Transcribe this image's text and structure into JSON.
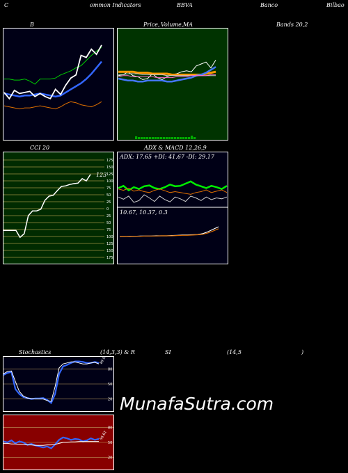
{
  "header": {
    "c1": "C",
    "c2": "ommon Indicators",
    "c3": "BBVA",
    "c4": "Banco",
    "c5": "Bilbao"
  },
  "panel_titles": {
    "bb": "B",
    "price_a": "Price,",
    "price_b": "Volume,",
    "price_c": "MA",
    "bands": "Bands 20,2",
    "cci": "CCI 20",
    "adx": "ADX  & MACD 12,26,9",
    "stoch_a": "Stochastics",
    "stoch_b": "(14,3,3) & R",
    "stoch_c": "SI",
    "stoch_d": "(14,5",
    "stoch_e": ")"
  },
  "watermark": "MunafaSutra.com",
  "colors": {
    "bb_bg": "#000016",
    "price_bg": "#003300",
    "cci_bg": "#002b00",
    "adx_bg": "#000016",
    "stoch_bg": "#000016",
    "rsi_bg": "#880000"
  },
  "chart_data": [
    {
      "type": "line",
      "name": "bollinger",
      "series": [
        {
          "values": [
            57,
            57,
            56,
            56,
            57,
            55,
            52,
            57,
            57,
            57,
            58,
            61,
            63,
            65,
            68,
            70,
            75,
            80,
            84,
            88
          ],
          "color": "#00cc00"
        },
        {
          "values": [
            43,
            42,
            41,
            40,
            41,
            41,
            42,
            43,
            42,
            41,
            40,
            41,
            44,
            47,
            50,
            53,
            57,
            62,
            68,
            74
          ],
          "color": "#3366ff"
        },
        {
          "values": [
            31,
            30,
            29,
            28,
            29,
            29,
            30,
            31,
            30,
            29,
            28,
            30,
            33,
            35,
            34,
            32,
            31,
            30,
            32,
            35
          ],
          "color": "#e07000"
        },
        {
          "values": [
            44,
            38,
            46,
            43,
            44,
            45,
            40,
            43,
            40,
            38,
            47,
            42,
            51,
            58,
            61,
            80,
            78,
            86,
            81,
            90
          ],
          "color": "#ffffff"
        }
      ]
    },
    {
      "type": "line",
      "name": "price-ma",
      "series": [
        {
          "values": [
            58,
            59,
            62,
            58,
            57,
            54,
            55,
            60,
            56,
            54,
            57,
            59,
            60,
            62,
            63,
            62,
            68,
            70,
            72,
            66,
            74
          ],
          "color": "#ffffff"
        },
        {
          "values": [
            62,
            62,
            62,
            62,
            61,
            61,
            61,
            60,
            60,
            60,
            60,
            59,
            59,
            59,
            59,
            59,
            59,
            59,
            60,
            61,
            62
          ],
          "color": "#ff9900"
        },
        {
          "values": [
            55,
            54,
            53,
            53,
            52,
            52,
            53,
            53,
            53,
            53,
            52,
            52,
            53,
            54,
            55,
            56,
            58,
            59,
            61,
            64,
            67
          ],
          "color": "#4477ff"
        },
        {
          "values": [
            59,
            59,
            60,
            60,
            60,
            59,
            59,
            59,
            59,
            59,
            58,
            58,
            58,
            58,
            58,
            58,
            58,
            58,
            58,
            58,
            58
          ],
          "color": "#cccccc"
        },
        {
          "values": [
            57,
            58,
            58,
            57,
            57,
            57,
            57,
            57,
            56,
            56,
            56,
            56,
            57,
            57,
            57,
            58,
            58,
            58,
            58,
            59,
            59
          ],
          "color": "#ff66cc"
        }
      ],
      "volume": [
        4,
        3,
        3,
        3,
        3,
        3,
        3,
        3,
        3,
        3,
        3,
        3,
        3,
        3,
        3,
        3,
        3,
        3,
        3,
        3,
        5,
        3
      ]
    },
    {
      "type": "line",
      "name": "cci",
      "ylim": [
        -175,
        175
      ],
      "y_ticks": [
        175,
        150,
        125,
        100,
        75,
        50,
        25,
        0,
        -25,
        -50,
        -75,
        -100,
        -125,
        -150,
        -175
      ],
      "y_tick_labels": [
        "175",
        "150",
        "125",
        "100",
        "75",
        "50",
        "25",
        "0",
        "25",
        "50",
        "75",
        "100",
        "125",
        "150",
        "175"
      ],
      "series": [
        {
          "values": [
            -78,
            -78,
            -78,
            -78,
            -103,
            -90,
            -25,
            -8,
            -8,
            -2,
            30,
            45,
            48,
            65,
            80,
            82,
            87,
            90,
            92,
            108,
            100,
            123
          ],
          "color": "#ffffff"
        }
      ],
      "last_label": "123"
    },
    {
      "type": "line",
      "name": "adx",
      "labels": {
        "adx": "17.65",
        "pdi": "41.67",
        "mdi": "29.17"
      },
      "series": [
        {
          "values": [
            40,
            45,
            35,
            42,
            38,
            44,
            46,
            40,
            38,
            42,
            48,
            44,
            45,
            50,
            55,
            48,
            44,
            40,
            45,
            42,
            38,
            45
          ],
          "color": "#00ee00"
        },
        {
          "values": [
            38,
            35,
            40,
            33,
            36,
            32,
            30,
            35,
            38,
            34,
            30,
            32,
            30,
            28,
            26,
            30,
            32,
            36,
            30,
            33,
            36,
            30
          ],
          "color": "#e07000"
        },
        {
          "values": [
            20,
            15,
            22,
            8,
            12,
            25,
            18,
            10,
            22,
            14,
            9,
            20,
            16,
            10,
            22,
            18,
            12,
            20,
            14,
            18,
            16,
            20
          ],
          "color": "#cccccc"
        }
      ]
    },
    {
      "type": "line",
      "name": "macd",
      "labels": {
        "macd": "10.67",
        "signal": "10.37",
        "hist": "0.3"
      },
      "series": [
        {
          "values": [
            0,
            0,
            0.1,
            0.1,
            0.2,
            0.2,
            0.2,
            0.3,
            0.3,
            0.3,
            0.4,
            0.5,
            0.6,
            0.6,
            0.7,
            0.8,
            1.2,
            2.0,
            3.0,
            4.0
          ],
          "color": "#ffffff"
        },
        {
          "values": [
            0,
            0,
            0,
            0.1,
            0.1,
            0.2,
            0.2,
            0.2,
            0.3,
            0.3,
            0.3,
            0.4,
            0.5,
            0.5,
            0.6,
            0.7,
            0.9,
            1.5,
            2.3,
            3.2
          ],
          "color": "#e07000"
        }
      ]
    },
    {
      "type": "line",
      "name": "stochastics",
      "ylim": [
        0,
        100
      ],
      "y_ticks": [
        80,
        50,
        20
      ],
      "y_tick_labels": [
        "80",
        "50",
        "20"
      ],
      "series": [
        {
          "values": [
            68,
            72,
            74,
            40,
            30,
            24,
            22,
            20,
            21,
            21,
            22,
            18,
            12,
            30,
            70,
            85,
            88,
            92,
            95,
            95,
            94,
            92,
            92,
            94,
            92
          ],
          "color": "#3366ff"
        },
        {
          "values": [
            70,
            75,
            76,
            55,
            35,
            26,
            22,
            21,
            20,
            20,
            20,
            17,
            15,
            45,
            82,
            90,
            92,
            94,
            94,
            92,
            90,
            90,
            92,
            93,
            90
          ],
          "color": "#ffffff"
        }
      ],
      "last_label": "89.91"
    },
    {
      "type": "line",
      "name": "rsi",
      "ylim": [
        0,
        100
      ],
      "y_ticks": [
        80,
        50,
        20
      ],
      "y_tick_labels": [
        "80",
        "50",
        "20"
      ],
      "series": [
        {
          "values": [
            52,
            50,
            54,
            48,
            52,
            50,
            45,
            47,
            44,
            42,
            40,
            42,
            38,
            46,
            55,
            60,
            58,
            55,
            57,
            56,
            52,
            54,
            58,
            55,
            57
          ],
          "color": "#3366ff"
        },
        {
          "values": [
            48,
            48,
            47,
            47,
            46,
            46,
            45,
            45,
            44,
            44,
            44,
            45,
            45,
            46,
            48,
            50,
            50,
            51,
            51,
            52,
            52,
            52,
            52,
            52,
            52
          ],
          "color": "#ffffff"
        }
      ],
      "last_label": "56.62"
    }
  ]
}
